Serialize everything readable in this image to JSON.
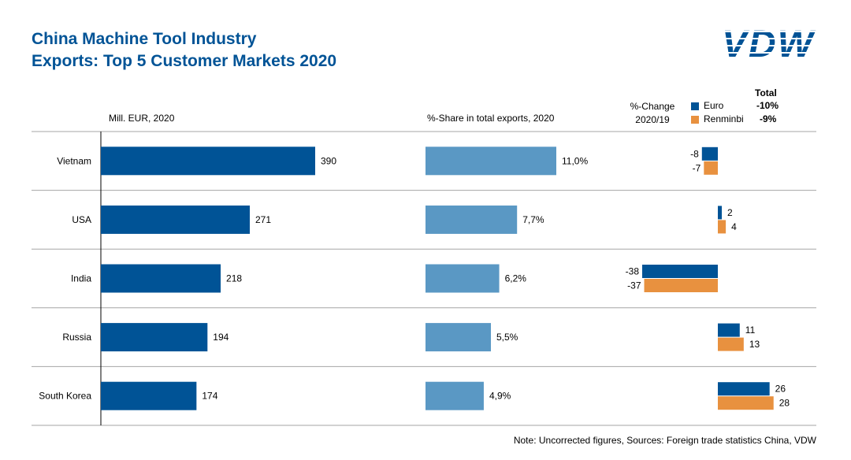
{
  "header": {
    "title": "China Machine Tool Industry",
    "subtitle": "Exports: Top 5 Customer Markets 2020",
    "logo_text": "VDW"
  },
  "columns": {
    "value_header": "Mill. EUR, 2020",
    "share_header": "%-Share in total exports, 2020",
    "change_header_line1": "%-Change",
    "change_header_line2": "2020/19"
  },
  "legend": {
    "total_label": "Total",
    "items": [
      {
        "label": "Euro",
        "total": "-10%",
        "color": "#005396"
      },
      {
        "label": "Renminbi",
        "total": "-9%",
        "color": "#E8913F"
      }
    ]
  },
  "colors": {
    "dark_blue": "#005396",
    "light_blue": "#5A98C4",
    "orange": "#E8913F",
    "grid": "#A6A6A6",
    "title": "#005396"
  },
  "chart_data": {
    "type": "bar",
    "categories": [
      "Vietnam",
      "USA",
      "India",
      "Russia",
      "South Korea"
    ],
    "exports_mill_eur": {
      "values": [
        390,
        271,
        218,
        194,
        174
      ],
      "labels": [
        "390",
        "271",
        "218",
        "194",
        "174"
      ]
    },
    "share_pct": {
      "values": [
        11.0,
        7.7,
        6.2,
        5.5,
        4.9
      ],
      "labels": [
        "11,0%",
        "7,7%",
        "6,2%",
        "5,5%",
        "4,9%"
      ]
    },
    "change_pct": {
      "series": [
        {
          "name": "Euro",
          "values": [
            -8,
            2,
            -38,
            11,
            26
          ],
          "labels": [
            "-8",
            "2",
            "-38",
            "11",
            "26"
          ]
        },
        {
          "name": "Renminbi",
          "values": [
            -7,
            4,
            -37,
            13,
            28
          ],
          "labels": [
            "-7",
            "4",
            "-37",
            "13",
            "28"
          ]
        }
      ]
    }
  },
  "footer": {
    "note": "Note: Uncorrected figures, Sources: Foreign trade statistics China, VDW"
  }
}
